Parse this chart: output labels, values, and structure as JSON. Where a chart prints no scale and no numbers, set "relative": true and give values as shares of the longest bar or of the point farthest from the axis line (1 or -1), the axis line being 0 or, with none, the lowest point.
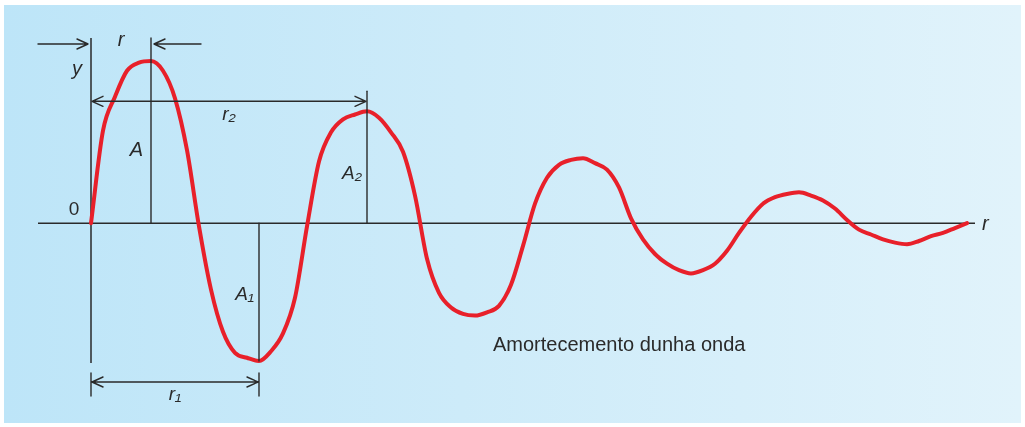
{
  "chart_data": {
    "type": "line",
    "relative": true,
    "marker": "none",
    "xlabel": "r",
    "ylabel": "y",
    "categories": [
      null,
      null,
      null,
      null,
      null,
      null,
      null,
      null,
      null,
      null,
      null,
      null,
      null,
      null,
      null,
      null,
      null,
      null,
      null,
      null,
      null,
      null,
      null,
      null,
      null,
      null,
      null,
      null,
      null,
      null,
      null,
      null,
      null,
      null,
      null,
      null,
      null,
      null,
      null,
      null,
      null,
      null,
      null,
      null,
      null,
      null,
      null,
      null,
      null,
      null,
      null,
      null,
      null,
      null,
      null,
      null,
      null,
      null,
      null,
      null,
      null,
      null,
      null,
      null,
      null,
      null,
      null,
      null,
      null,
      null,
      null,
      null,
      null,
      null
    ],
    "series": [
      {
        "color": "#e8202a",
        "values": [
          0,
          0.57,
          0.78,
          0.94,
          0.99,
          1,
          0.94,
          0.77,
          0.45,
          -0.02,
          -0.41,
          -0.67,
          -0.8,
          -0.83,
          -0.85,
          -0.79,
          -0.68,
          -0.46,
          -0.02,
          0.38,
          0.56,
          0.64,
          0.67,
          0.69,
          0.65,
          0.56,
          0.44,
          0.17,
          -0.22,
          -0.43,
          -0.52,
          -0.56,
          -0.57,
          -0.55,
          -0.51,
          -0.38,
          -0.14,
          0.12,
          0.28,
          0.36,
          0.39,
          0.4,
          0.37,
          0.33,
          0.22,
          0.03,
          -0.1,
          -0.19,
          -0.25,
          -0.29,
          -0.31,
          -0.29,
          -0.25,
          -0.17,
          -0.06,
          0.04,
          0.12,
          0.16,
          0.18,
          0.19,
          0.17,
          0.14,
          0.09,
          0.02,
          -0.04,
          -0.07,
          -0.1,
          -0.12,
          -0.13,
          -0.11,
          -0.08,
          -0.06,
          -0.03,
          0
        ]
      }
    ],
    "annotations": [
      "0",
      "r",
      "A",
      "r₂",
      "A₂",
      "A₁",
      "r₁",
      "Amortecemento dunha onda"
    ]
  }
}
